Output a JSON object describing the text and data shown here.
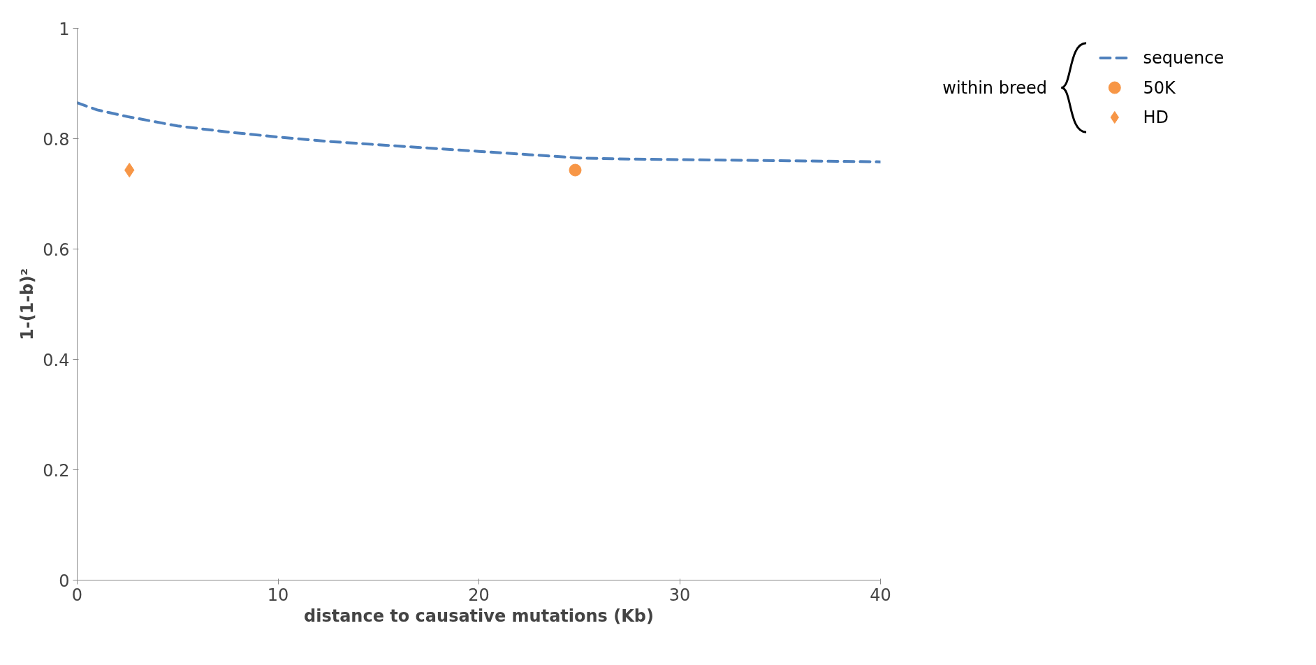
{
  "chart_data": {
    "type": "line",
    "xlabel": "distance to causative mutations (Kb)",
    "ylabel": "1-(1-b)²",
    "legend_title": "within breed",
    "legend": "right",
    "grid": false,
    "xlim": [
      0,
      40
    ],
    "xticks": [
      0,
      10,
      20,
      30,
      40
    ],
    "ylim": [
      0,
      1
    ],
    "yticks": [
      0,
      0.2,
      0.4,
      0.6,
      0.8,
      1
    ],
    "series": [
      {
        "name": "sequence",
        "line_style": "dashed",
        "marker": "none",
        "color": "#4f81bd",
        "x": [
          0,
          1,
          2.5,
          5,
          7.5,
          10,
          12.5,
          15,
          17.5,
          20,
          22.5,
          25,
          27.5,
          30,
          35,
          40
        ],
        "values": [
          0.865,
          0.852,
          0.84,
          0.823,
          0.812,
          0.803,
          0.795,
          0.789,
          0.783,
          0.777,
          0.771,
          0.765,
          0.763,
          0.762,
          0.76,
          0.758
        ]
      },
      {
        "name": "50K",
        "type": "scatter",
        "marker": "circle",
        "color": "#f79646",
        "x": [
          24.8
        ],
        "values": [
          0.743
        ]
      },
      {
        "name": "HD",
        "type": "scatter",
        "marker": "diamond",
        "color": "#f79646",
        "x": [
          2.6
        ],
        "values": [
          0.743
        ]
      }
    ]
  }
}
